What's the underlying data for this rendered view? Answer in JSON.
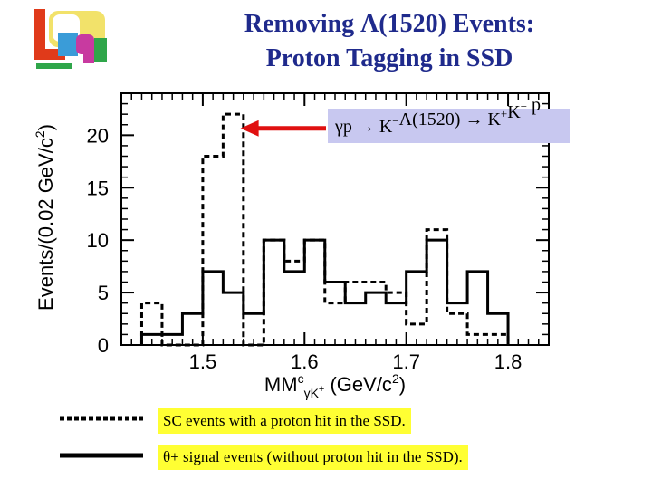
{
  "header": {
    "title_line1": "Removing Λ(1520) Events:",
    "title_line2": "Proton Tagging in SSD"
  },
  "logo": {
    "name": "LEPS logo",
    "icon": "leps-logo-icon"
  },
  "chart_data": {
    "type": "histogram",
    "xlabel": "MM",
    "xlabel_sup": "c",
    "xlabel_sub": "γK",
    "xlabel_subsup": "+",
    "xlabel_unit_open": "(GeV/c",
    "xlabel_unit_sup": "2",
    "xlabel_unit_close": ")",
    "ylabel_main": "Events/(0.02 GeV/c",
    "ylabel_sup": "2",
    "ylabel_close": ")",
    "xlim": [
      1.42,
      1.84
    ],
    "ylim": [
      0,
      24
    ],
    "x_ticks": [
      1.5,
      1.6,
      1.7,
      1.8
    ],
    "x_tick_labels": [
      "1.5",
      "1.6",
      "1.7",
      "1.8"
    ],
    "y_ticks": [
      0,
      5,
      10,
      15,
      20
    ],
    "y_tick_labels": [
      "0",
      "5",
      "10",
      "15",
      "20"
    ],
    "bin_edges": [
      1.44,
      1.46,
      1.48,
      1.5,
      1.52,
      1.54,
      1.56,
      1.58,
      1.6,
      1.62,
      1.64,
      1.66,
      1.68,
      1.7,
      1.72,
      1.74,
      1.76,
      1.78,
      1.8
    ],
    "series": [
      {
        "name": "SC events with a proton hit in the SSD.",
        "style": "dashed",
        "values": [
          4,
          0,
          0,
          18,
          22,
          0,
          10,
          8,
          10,
          4,
          6,
          6,
          5,
          2,
          11,
          3,
          1,
          1
        ]
      },
      {
        "name": "θ+ signal events (without proton hit in the SSD).",
        "style": "solid",
        "values": [
          1,
          1,
          3,
          7,
          5,
          3,
          10,
          7,
          10,
          6,
          4,
          5,
          4,
          7,
          10,
          4,
          7,
          3
        ]
      }
    ],
    "annotation": {
      "text_lhs": "γp → K",
      "text_lhs_sup": "−",
      "text_mid": "Λ(1520) → K",
      "text_mid_sup": "+",
      "text_k2": "K",
      "text_k2_sup": "−",
      "text_end": " p",
      "box_color": "#c8c8f0",
      "arrow_color": "#e01010",
      "arrow_target_x": 1.53,
      "arrow_target_y": 21
    }
  },
  "legend": {
    "dashed_label": "SC events with a proton hit in the SSD.",
    "solid_label": "θ+ signal events (without proton hit in the SSD).",
    "box_color": "#ffff33"
  }
}
